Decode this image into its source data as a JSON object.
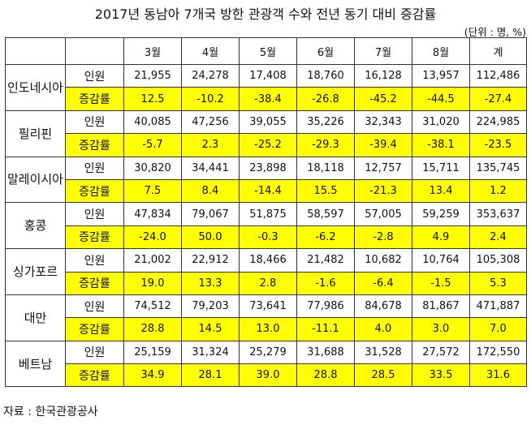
{
  "title": "2017년 동남아 7개국 방한 관광객 수와 전년 동기 대비 증감률",
  "unit": "(단위 : 명, %)",
  "columns": [
    "3월",
    "4월",
    "5월",
    "6월",
    "7월",
    "8월",
    "계"
  ],
  "row_labels": {
    "visitors": "인원",
    "rate": "증감률"
  },
  "highlight_color": "#ffff00",
  "countries": [
    {
      "name": "인도네시아",
      "visitors": [
        "21,955",
        "24,278",
        "17,408",
        "18,760",
        "16,128",
        "13,957",
        "112,486"
      ],
      "rate": [
        "12.5",
        "-10.2",
        "-38.4",
        "-26.8",
        "-45.2",
        "-44.5",
        "-27.4"
      ]
    },
    {
      "name": "필리핀",
      "visitors": [
        "40,085",
        "47,256",
        "39,055",
        "35,226",
        "32,343",
        "31,020",
        "224,985"
      ],
      "rate": [
        "-5.7",
        "2.3",
        "-25.2",
        "-29.3",
        "-39.4",
        "-38.1",
        "-23.5"
      ]
    },
    {
      "name": "말레이시아",
      "visitors": [
        "30,820",
        "34,441",
        "23,898",
        "18,118",
        "12,757",
        "15,711",
        "135,745"
      ],
      "rate": [
        "7.5",
        "8.4",
        "-14.4",
        "15.5",
        "-21.3",
        "13.4",
        "1.2"
      ]
    },
    {
      "name": "홍콩",
      "visitors": [
        "47,834",
        "79,067",
        "51,875",
        "58,597",
        "57,005",
        "59,259",
        "353,637"
      ],
      "rate": [
        "-24.0",
        "50.0",
        "-0.3",
        "-6.2",
        "-2.8",
        "4.9",
        "2.4"
      ]
    },
    {
      "name": "싱가포르",
      "visitors": [
        "21,002",
        "22,912",
        "18,466",
        "21,482",
        "10,682",
        "10,764",
        "105,308"
      ],
      "rate": [
        "19.0",
        "13.3",
        "2.8",
        "-1.6",
        "-6.4",
        "-1.5",
        "5.3"
      ]
    },
    {
      "name": "대만",
      "visitors": [
        "74,512",
        "79,203",
        "73,641",
        "77,986",
        "84,678",
        "81,867",
        "471,887"
      ],
      "rate": [
        "28.8",
        "14.5",
        "13.0",
        "-11.1",
        "4.0",
        "3.0",
        "7.0"
      ]
    },
    {
      "name": "베트남",
      "visitors": [
        "25,159",
        "31,324",
        "25,279",
        "31,688",
        "31,528",
        "27,572",
        "172,550"
      ],
      "rate": [
        "34.9",
        "28.1",
        "39.0",
        "28.8",
        "28.5",
        "33.5",
        "31.6"
      ]
    }
  ],
  "source": "자료 : 한국관광공사"
}
